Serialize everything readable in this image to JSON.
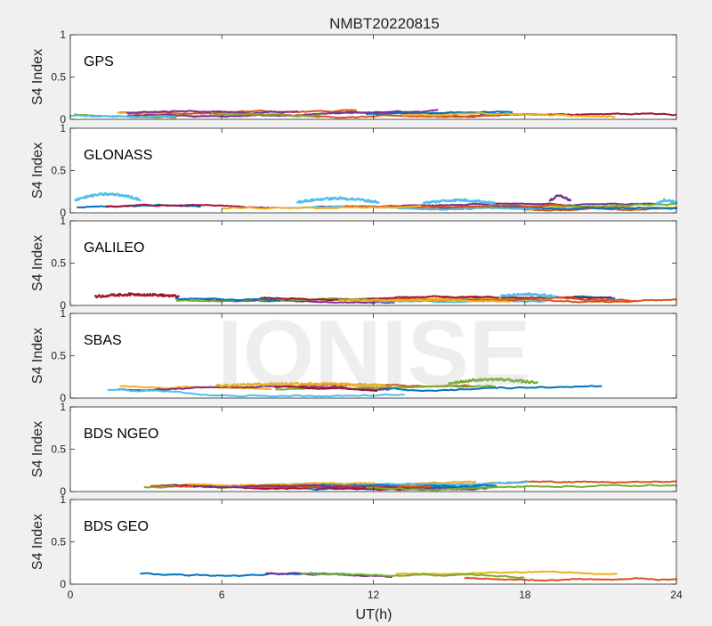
{
  "chart_data": {
    "type": "scatter",
    "title": "NMBT20220815",
    "xlabel": "UT(h)",
    "ylabel": "S4 Index",
    "xlim": [
      0,
      24
    ],
    "ylim": [
      0,
      1
    ],
    "xticks": [
      "0",
      "6",
      "12",
      "18",
      "24"
    ],
    "yticks": [
      "0",
      "0.5",
      "1"
    ],
    "watermark": "IONISE",
    "grid": false,
    "series_colors": [
      "#0072BD",
      "#D95319",
      "#EDB120",
      "#7E2F8E",
      "#77AC30",
      "#4DBEEE",
      "#A2142F"
    ],
    "panels": [
      {
        "name": "GPS",
        "baseline": 0.06,
        "tracks": 12,
        "bumps": []
      },
      {
        "name": "GLONASS",
        "baseline": 0.06,
        "tracks": 10,
        "bumps": [
          {
            "x0": 0.2,
            "x1": 2.8,
            "y": 0.22,
            "color": "#4DBEEE"
          },
          {
            "x0": 9.0,
            "x1": 12.2,
            "y": 0.17,
            "color": "#4DBEEE"
          },
          {
            "x0": 14.0,
            "x1": 16.8,
            "y": 0.15,
            "color": "#4DBEEE"
          },
          {
            "x0": 19.0,
            "x1": 19.8,
            "y": 0.2,
            "color": "#7E2F8E"
          },
          {
            "x0": 23.2,
            "x1": 24.0,
            "y": 0.15,
            "color": "#4DBEEE"
          }
        ]
      },
      {
        "name": "GALILEO",
        "baseline": 0.07,
        "tracks": 10,
        "bumps": [
          {
            "x0": 1.0,
            "x1": 4.3,
            "y": 0.13,
            "color": "#A2142F"
          },
          {
            "x0": 17.0,
            "x1": 19.2,
            "y": 0.13,
            "color": "#4DBEEE"
          }
        ]
      },
      {
        "name": "SBAS",
        "baseline": 0.11,
        "tracks": 7,
        "bumps": [
          {
            "x0": 5.8,
            "x1": 12.5,
            "y": 0.17,
            "color": "#EDB120"
          },
          {
            "x0": 15.0,
            "x1": 18.5,
            "y": 0.22,
            "color": "#77AC30"
          }
        ]
      },
      {
        "name": "BDS NGEO",
        "baseline": 0.07,
        "tracks": 12,
        "bumps": []
      },
      {
        "name": "BDS GEO",
        "baseline": 0.1,
        "tracks": 5,
        "bumps": []
      }
    ]
  }
}
